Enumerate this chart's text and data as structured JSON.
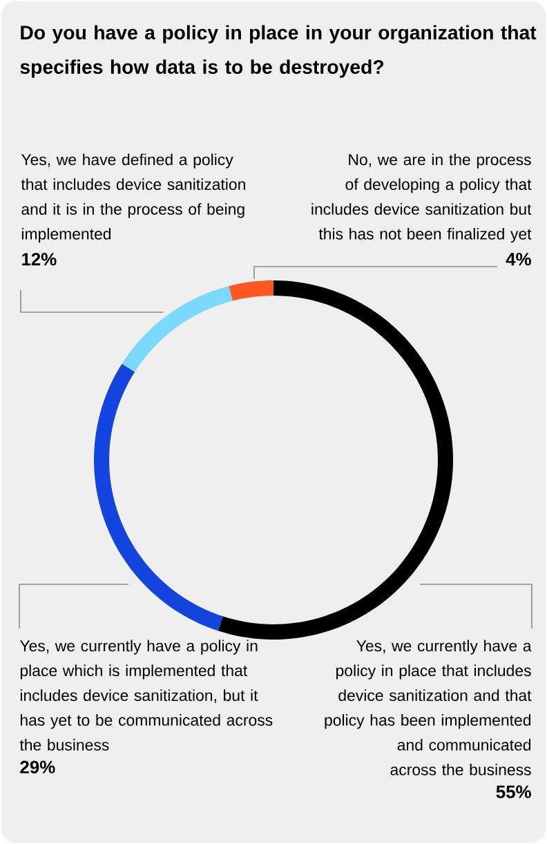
{
  "chart_data": {
    "type": "donut",
    "title": "Do you have a policy in place in your organization that specifies how data is to be destroyed?",
    "categories": [
      "Yes, we currently have a policy in place that includes device sanitization and that policy has been implemented and communicated across the business",
      "Yes, we currently have a policy in place which is implemented that includes device sanitization, but it has yet to be communicated across the business",
      "Yes, we have defined a policy that includes device sanitization and it is in the process of being implemented",
      "No, we are in the process of developing a policy that includes device sanitization but this has not been finalized yet"
    ],
    "values": [
      55,
      29,
      12,
      4
    ],
    "value_labels": [
      "55%",
      "29%",
      "12%",
      "4%"
    ],
    "colors": [
      "#000000",
      "#1444de",
      "#7dd9fb",
      "#ff5722"
    ]
  }
}
